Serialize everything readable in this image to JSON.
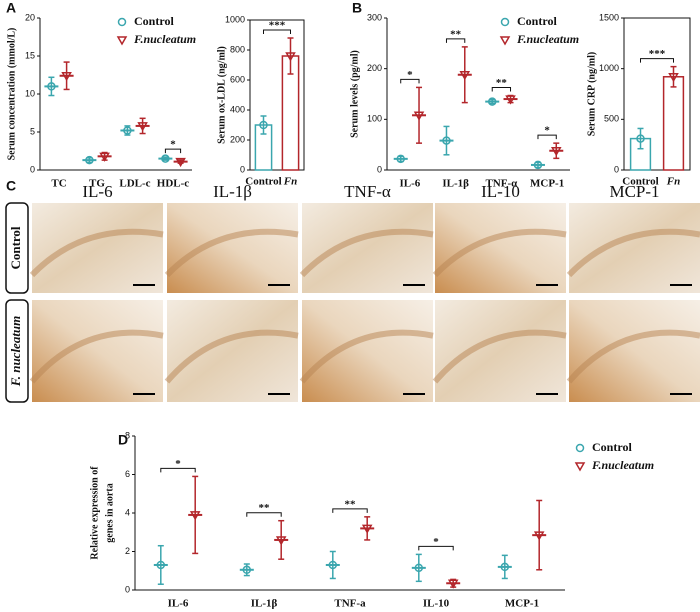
{
  "panel_labels": [
    "A",
    "B",
    "C",
    "D"
  ],
  "chart_data": [
    {
      "type": "dot",
      "ylabel": "Serum concentration (mmol/L)",
      "categories": [
        "TC",
        "TG",
        "LDL-c",
        "HDL-c"
      ],
      "series": [
        {
          "name": "Control",
          "color": "#3aa6ae",
          "values": [
            11,
            1.3,
            5.2,
            1.5
          ],
          "errors": [
            1.2,
            0.3,
            0.6,
            0.2
          ]
        },
        {
          "name": "F.nucleatum",
          "color": "#b3262b",
          "values": [
            12.4,
            1.8,
            5.8,
            1.1
          ],
          "errors": [
            1.8,
            0.5,
            1.0,
            0.2
          ]
        }
      ],
      "significance": [
        null,
        null,
        null,
        "*"
      ],
      "ylim": [
        0,
        20
      ],
      "yticks": [
        0,
        5,
        10,
        15,
        20
      ]
    },
    {
      "type": "bar",
      "ylabel": "Serum ox-LDL (ng/ml)",
      "categories": [
        "Control",
        "Fn"
      ],
      "values": [
        300,
        760
      ],
      "errors": [
        60,
        120
      ],
      "colors": [
        "#3aa6ae",
        "#b3262b"
      ],
      "significance": "***",
      "ylim": [
        0,
        1000
      ],
      "yticks": [
        0,
        200,
        400,
        600,
        800,
        1000
      ]
    },
    {
      "type": "dot",
      "ylabel": "Serum levels (pg/ml)",
      "categories": [
        "IL-6",
        "IL-1β",
        "TNF-α",
        "MCP-1"
      ],
      "series": [
        {
          "name": "Control",
          "color": "#3aa6ae",
          "values": [
            22,
            58,
            135,
            10
          ],
          "errors": [
            5,
            28,
            4,
            5
          ]
        },
        {
          "name": "F.nucleatum",
          "color": "#b3262b",
          "values": [
            108,
            188,
            140,
            38
          ],
          "errors": [
            55,
            55,
            7,
            15
          ]
        }
      ],
      "significance": [
        "*",
        "**",
        "**",
        "*"
      ],
      "ylim": [
        0,
        300
      ],
      "yticks": [
        0,
        100,
        200,
        300
      ]
    },
    {
      "type": "bar",
      "ylabel": "Serum CRP (ng/ml)",
      "categories": [
        "Control",
        "Fn"
      ],
      "values": [
        310,
        920
      ],
      "errors": [
        100,
        100
      ],
      "colors": [
        "#3aa6ae",
        "#b3262b"
      ],
      "significance": "***",
      "ylim": [
        0,
        1500
      ],
      "yticks": [
        0,
        500,
        1000,
        1500
      ]
    },
    {
      "type": "dot",
      "ylabel": [
        "Relative expression of",
        "genes in aorta"
      ],
      "categories": [
        "IL-6",
        "IL-1β",
        "TNF-a",
        "IL-10",
        "MCP-1"
      ],
      "series": [
        {
          "name": "Control",
          "color": "#3aa6ae",
          "values": [
            1.3,
            1.05,
            1.3,
            1.15,
            1.2
          ],
          "errors": [
            1.0,
            0.3,
            0.7,
            0.7,
            0.6
          ]
        },
        {
          "name": "F.nucleatum",
          "color": "#b3262b",
          "values": [
            3.9,
            2.6,
            3.2,
            0.35,
            2.85
          ],
          "errors": [
            2.0,
            1.0,
            0.6,
            0.2,
            1.8
          ]
        }
      ],
      "significance": [
        "*",
        "**",
        "**",
        "*",
        null
      ],
      "ylim": [
        0,
        8
      ],
      "yticks": [
        0,
        2,
        4,
        6,
        8
      ]
    }
  ],
  "panel_c": {
    "columns": [
      "IL-6",
      "IL-1β",
      "TNF-α",
      "IL-10",
      "MCP-1"
    ],
    "rows": [
      "Control",
      "F. nucleatum"
    ]
  }
}
